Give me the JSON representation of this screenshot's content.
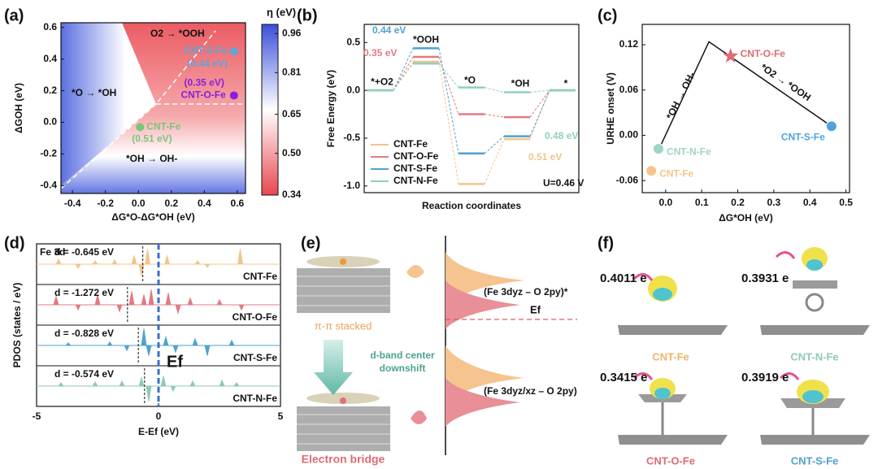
{
  "panel_labels": [
    "(a)",
    "(b)",
    "(c)",
    "(d)",
    "(e)",
    "(f)"
  ],
  "chart_data": [
    {
      "type": "heatmap",
      "xlabel": "ΔG*O-ΔG*OH (eV)",
      "ylabel": "ΔGOH (eV)",
      "xlim": [
        -0.47,
        0.65
      ],
      "ylim": [
        -0.45,
        0.63
      ],
      "xticks": [
        -0.4,
        -0.2,
        {
          "value": 0,
          "label": "0.0"
        },
        0.2,
        0.4,
        0.6
      ],
      "yticks": [
        -0.4,
        -0.2,
        {
          "value": 0,
          "label": "0.0"
        },
        0.2,
        0.4,
        0.6
      ],
      "points": [
        {
          "name": "CNT-S-Fe",
          "label": "(0.44 eV)",
          "x": 0.58,
          "y": 0.45,
          "color": "#5ba6da"
        },
        {
          "name": "CNT-O-Fe",
          "label": "(0.35 eV)",
          "x": 0.58,
          "y": 0.17,
          "color": "#8a1fe0"
        },
        {
          "name": "CNT-Fe",
          "label": "(0.51 eV)",
          "x": 0.01,
          "y": -0.03,
          "color": "#7cc47c"
        }
      ],
      "annotations": [
        "O2 → *OOH",
        "*O → *OH",
        "*OH → OH-"
      ],
      "colorbar": {
        "title": "η (eV)",
        "lim": [
          0.34,
          0.995
        ],
        "ticks": [
          0.96,
          0.81,
          0.65,
          {
            "value": 0.5,
            "label": "0.50"
          },
          0.34
        ],
        "colors": [
          "#e8474f",
          "#ffffff",
          "#3b4fd8"
        ]
      }
    },
    {
      "type": "step",
      "xlabel": "Reaction coordinates",
      "ylabel": "Free Energy (eV)",
      "ylim": [
        -1.07,
        0.69
      ],
      "yticks": [
        {
          "value": -1,
          "label": "-1.0"
        },
        -0.5,
        {
          "value": 0,
          "label": "0.0"
        },
        0.5
      ],
      "categories": [
        "*+O2",
        "*OOH",
        "*O",
        "*OH",
        "*"
      ],
      "series": [
        {
          "name": "CNT-Fe",
          "color": "#f2c48c",
          "values": [
            0,
            0.3,
            -0.98,
            -0.51,
            0
          ]
        },
        {
          "name": "CNT-O-Fe",
          "color": "#e07b85",
          "values": [
            0,
            0.35,
            -0.25,
            -0.28,
            0
          ]
        },
        {
          "name": "CNT-S-Fe",
          "color": "#4ea3cc",
          "values": [
            0,
            0.44,
            -0.66,
            -0.48,
            0
          ]
        },
        {
          "name": "CNT-N-Fe",
          "color": "#8fd0c0",
          "values": [
            0,
            0.28,
            0.03,
            -0.02,
            0
          ]
        }
      ],
      "annotations": [
        "0.44 eV",
        "0.35 eV",
        "0.48 eV",
        "0.51 eV",
        "U=0.46 V"
      ],
      "legend": "lower left"
    },
    {
      "type": "volcano",
      "xlabel": "ΔG*OH (eV)",
      "ylabel": "URHE onset (V)",
      "xlim": [
        -0.065,
        0.51
      ],
      "ylim": [
        -0.076,
        0.147
      ],
      "xticks": [
        {
          "value": 0,
          "label": "0.0"
        },
        0.1,
        0.2,
        0.3,
        0.4,
        0.5
      ],
      "yticks": [
        -0.06,
        {
          "value": 0,
          "label": "0.00"
        },
        0.06,
        0.12
      ],
      "line": {
        "x": [
          -0.025,
          0.12,
          0.46
        ],
        "y": [
          -0.025,
          0.124,
          0.012
        ]
      },
      "points": [
        {
          "name": "CNT-O-Fe",
          "x": 0.18,
          "y": 0.105,
          "color": "#e06a72",
          "marker": "star"
        },
        {
          "name": "CNT-S-Fe",
          "x": 0.46,
          "y": 0.012,
          "color": "#4ea3d8",
          "marker": "circle"
        },
        {
          "name": "CNT-N-Fe",
          "x": -0.02,
          "y": -0.018,
          "color": "#9fd4c8",
          "marker": "circle"
        },
        {
          "name": "CNT-Fe",
          "x": -0.04,
          "y": -0.047,
          "color": "#f6c48e",
          "marker": "circle"
        }
      ],
      "annotations": [
        "*OH → OH-",
        "*O2 → *OOH"
      ]
    },
    {
      "type": "pdos",
      "xlabel": "E-Ef (eV)",
      "ylabel": "PDOS (states / eV)",
      "xlim": [
        -5,
        5
      ],
      "xticks": [
        -5,
        0,
        5
      ],
      "ylim": [
        -1,
        1
      ],
      "fermi": 0,
      "fermi_label": "Ef",
      "annotation": "Fe 3d",
      "series": [
        {
          "name": "CNT-Fe",
          "color": "#f2c48c",
          "d": -0.645,
          "d_label": "d = -0.645 eV",
          "x": [
            -4.1,
            -3.3,
            -2.6,
            -1.8,
            -1.0,
            -0.7,
            -0.45,
            0.35,
            1.6,
            2.0,
            3.35
          ],
          "values": [
            0.3,
            -0.25,
            0.2,
            0.25,
            0.5,
            -0.7,
            0.9,
            0.5,
            0.2,
            -0.2,
            0.9
          ]
        },
        {
          "name": "CNT-O-Fe",
          "color": "#e07b85",
          "d": -1.272,
          "d_label": "d = -1.272 eV",
          "x": [
            -4.2,
            -3.3,
            -2.5,
            -1.6,
            -1.1,
            -0.6,
            -0.3,
            0.4,
            0.8,
            1.3,
            2.5,
            3.4
          ],
          "values": [
            0.5,
            -0.3,
            0.6,
            -0.4,
            0.8,
            0.6,
            0.9,
            0.7,
            -0.5,
            0.4,
            0.3,
            -0.3
          ]
        },
        {
          "name": "CNT-S-Fe",
          "color": "#4ea3cc",
          "d": -0.828,
          "d_label": "d = -0.828 eV",
          "x": [
            -3.7,
            -2.0,
            -1.3,
            -0.6,
            -0.4,
            0.3,
            0.7,
            1.5,
            2.0,
            3.0
          ],
          "values": [
            0.15,
            0.2,
            -0.3,
            1.0,
            -0.6,
            0.5,
            -0.4,
            0.4,
            -0.6,
            0.3
          ]
        },
        {
          "name": "CNT-N-Fe",
          "color": "#8fc9b5",
          "d": -0.574,
          "d_label": "d = -0.574 eV",
          "x": [
            -4.0,
            -2.6,
            -1.5,
            -0.7,
            -0.4,
            0.2,
            0.6,
            1.4,
            2.6,
            3.2
          ],
          "values": [
            0.2,
            0.25,
            0.3,
            0.5,
            -0.9,
            0.6,
            -0.3,
            0.3,
            0.35,
            0.2
          ]
        }
      ]
    }
  ],
  "panel_e": {
    "top_label": "π-π stacked",
    "arrow_label": [
      "d-band center",
      "downshift"
    ],
    "bottom_label": "Electron bridge",
    "upper_state": "(Fe 3dyz – O 2py)*",
    "fermi": "Ef",
    "lower_state": "(Fe 3dyz/xz – O 2py)"
  },
  "panel_f": {
    "items": [
      {
        "charge": "0.4011 e",
        "name": "CNT-Fe"
      },
      {
        "charge": "0.3931 e",
        "name": "CNT-N-Fe"
      },
      {
        "charge": "0.3415 e",
        "name": "CNT-O-Fe"
      },
      {
        "charge": "0.3919 e",
        "name": "CNT-S-Fe"
      }
    ]
  }
}
